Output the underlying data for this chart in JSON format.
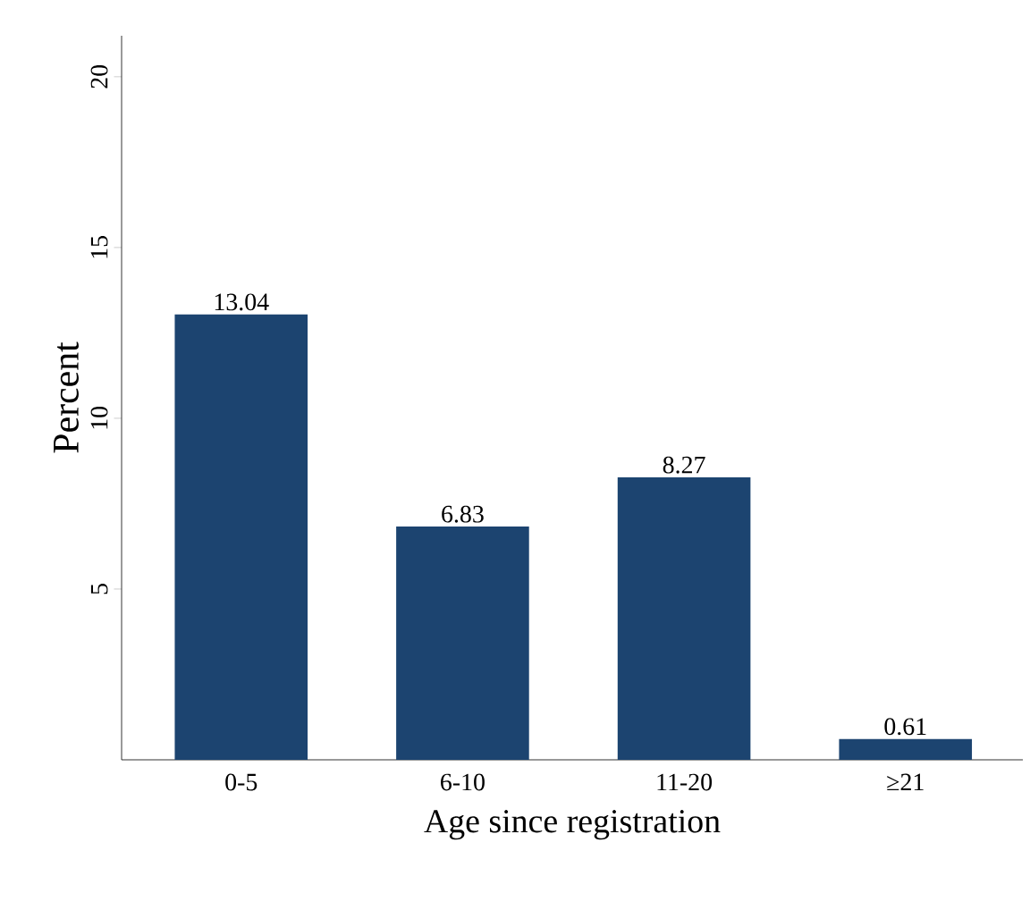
{
  "chart_data": {
    "type": "bar",
    "xlabel": "Age since registration",
    "ylabel": "Percent",
    "categories": [
      "0-5",
      "6-10",
      "11-20",
      "≥21"
    ],
    "values": [
      13.04,
      6.83,
      8.27,
      0.61
    ],
    "color": "#1c4470",
    "ylim": [
      0,
      21.2
    ],
    "yticks": [
      5,
      10,
      15,
      20
    ],
    "data_labels": true,
    "grid": false
  }
}
